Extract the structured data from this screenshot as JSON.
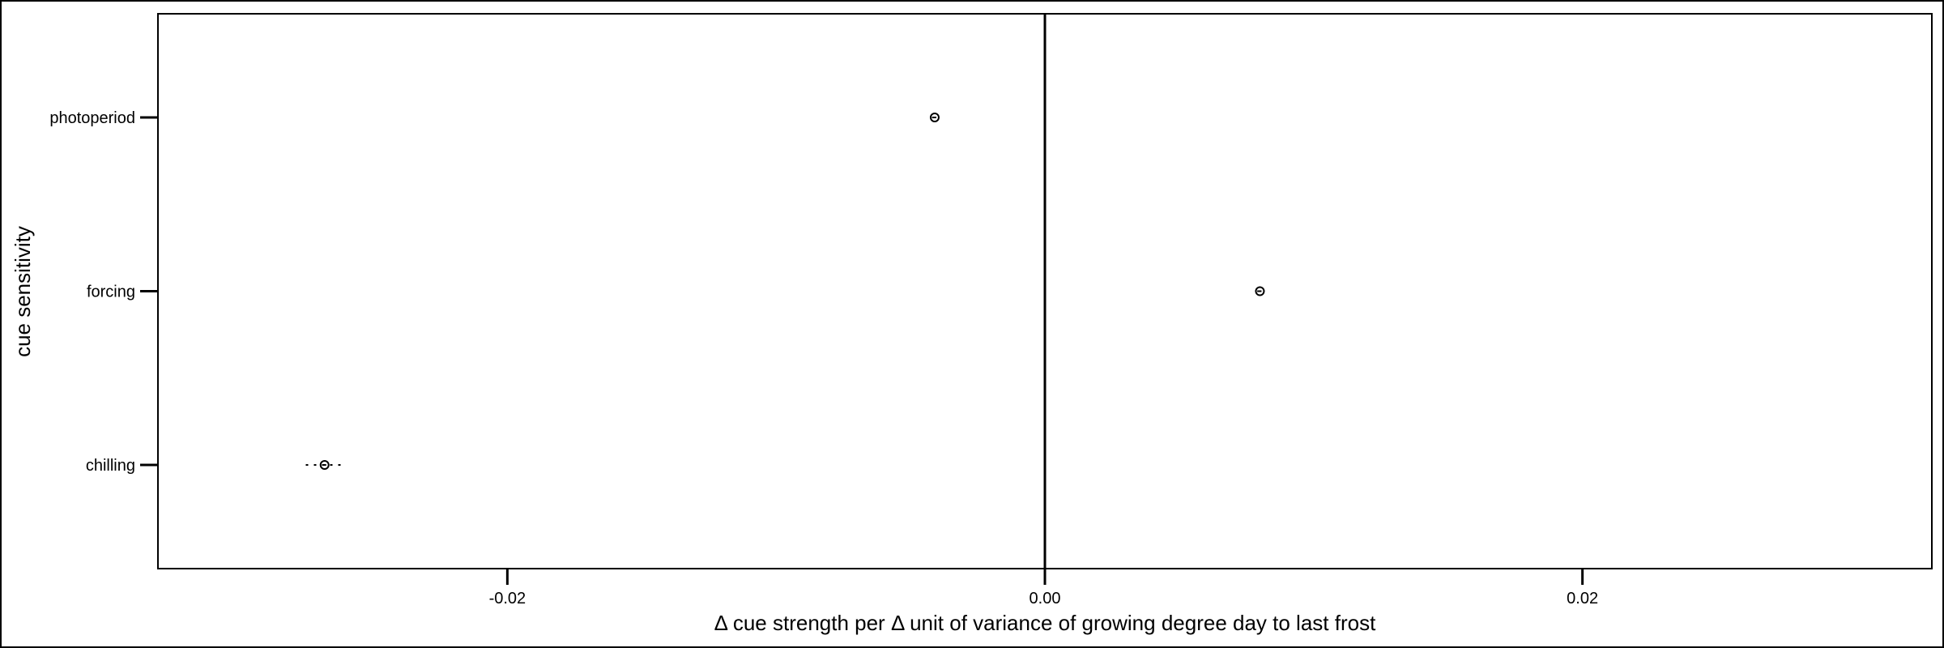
{
  "chart_data": {
    "type": "scatter",
    "title": "",
    "xlabel": "Δ cue strength per Δ unit of variance of growing degree day to last frost",
    "ylabel": "cue sensitivity",
    "xlim": [
      -0.033,
      0.033
    ],
    "x_ticks": [
      -0.02,
      0.0,
      0.02
    ],
    "x_tick_labels": [
      "-0.02",
      "0.00",
      "0.02"
    ],
    "categories": [
      "chilling",
      "forcing",
      "photoperiod"
    ],
    "points": [
      {
        "category": "chilling",
        "estimate": -0.0268,
        "lower": -0.0275,
        "upper": -0.026
      },
      {
        "category": "forcing",
        "estimate": 0.008,
        "lower": 0.0079,
        "upper": 0.0081
      },
      {
        "category": "photoperiod",
        "estimate": -0.0041,
        "lower": -0.0042,
        "upper": -0.004
      }
    ],
    "reference_line_x": 0.0,
    "grid": false,
    "legend": "none"
  }
}
